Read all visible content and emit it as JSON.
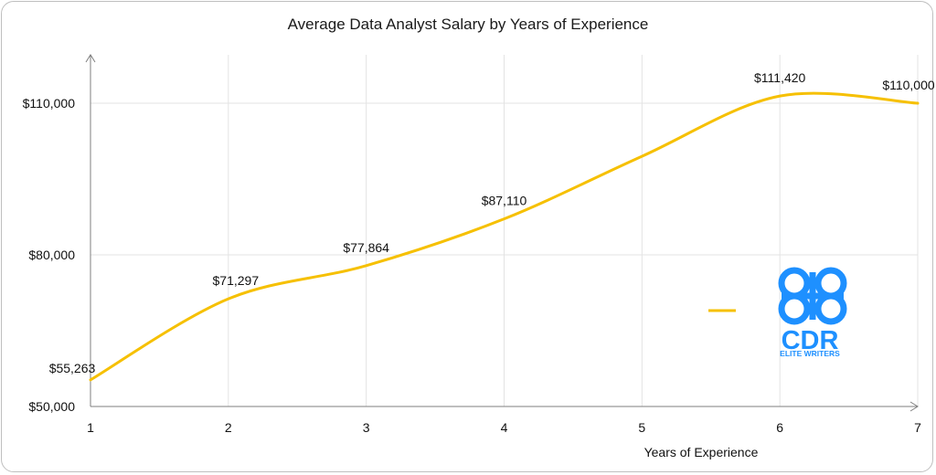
{
  "chart_data": {
    "type": "line",
    "title": "Average Data Analyst Salary by Years of Experience",
    "xlabel": "Years of Experience",
    "ylabel": "",
    "x": [
      1,
      2,
      3,
      4,
      5,
      6,
      7
    ],
    "x_tick_labels": [
      "1",
      "2",
      "3",
      "4",
      "5",
      "6",
      "7"
    ],
    "y_tick_values": [
      50000,
      80000,
      110000
    ],
    "y_tick_labels": [
      "$50,000",
      "$80,000",
      "$110,000"
    ],
    "ylim": [
      50000,
      110000
    ],
    "series": [
      {
        "values": [
          55263,
          71297,
          77864,
          87110,
          99500,
          111420,
          110000
        ],
        "data_labels": [
          "$55,263",
          "$71,297",
          "$77,864",
          "$87,110",
          "",
          "$111,420",
          "$110,000"
        ],
        "color": "#F6C000",
        "smooth": true
      }
    ],
    "grid": true,
    "legend": "right"
  },
  "logo": {
    "text_main": "CDR",
    "text_sub": "ELITE WRITERS",
    "color": "#1E90FF"
  }
}
